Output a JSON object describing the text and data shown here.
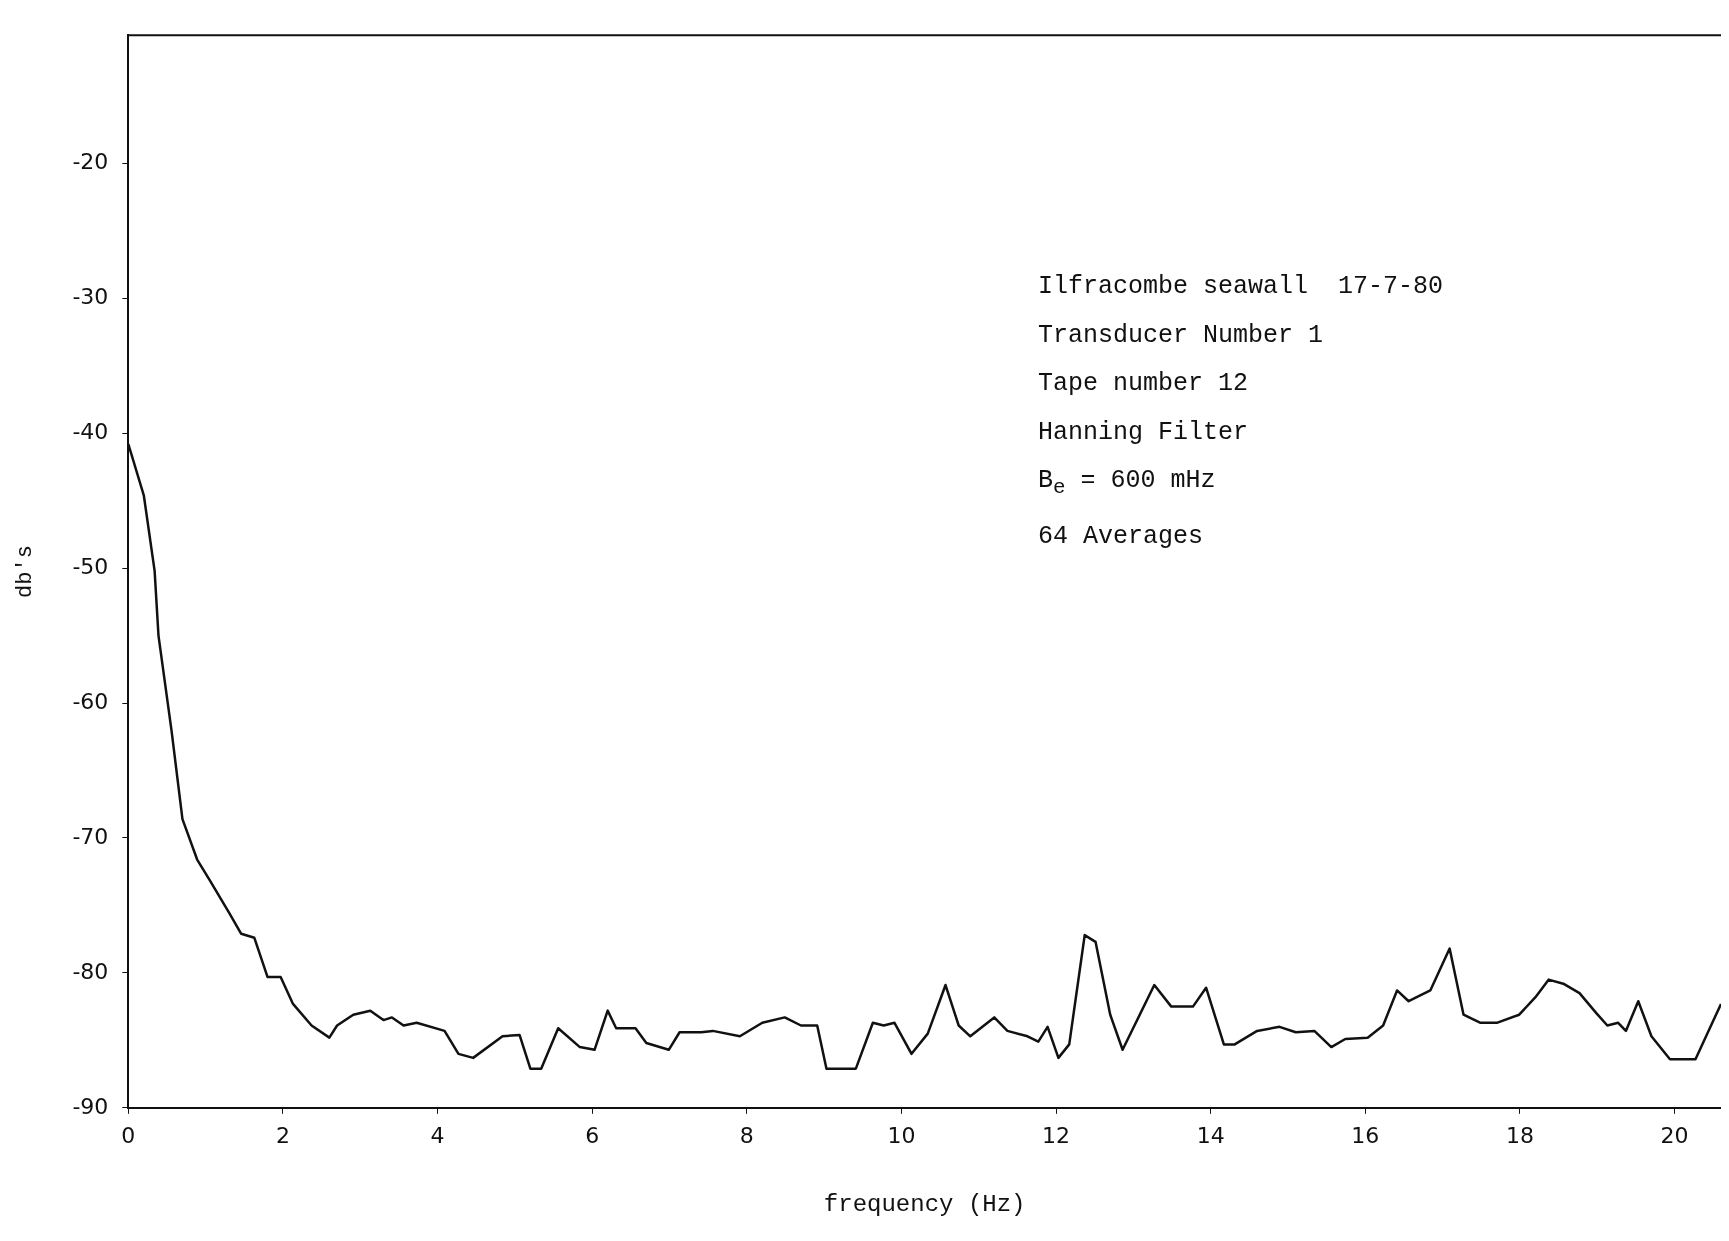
{
  "chart_data": {
    "type": "line",
    "xlabel": "frequency (Hz)",
    "ylabel": "db's",
    "annotations": [
      "Ilfracombe seawall  17-7-80",
      "Transducer Number 1",
      "Tape number 12",
      "Hanning Filter",
      "B$_{e}$ = 600 mHz",
      "64 Averages"
    ],
    "xlim": [
      0,
      20.6
    ],
    "xticks": [
      0,
      2,
      4,
      6,
      8,
      10,
      12,
      14,
      16,
      18,
      20
    ],
    "ylim": [
      -90,
      -10.5
    ],
    "yticks": [
      -90,
      -80,
      -70,
      -60,
      -50,
      -40,
      -30,
      -20
    ],
    "grid": false,
    "legend": false,
    "marker": "none",
    "line_style": "solid",
    "series": [
      {
        "color": "#111111",
        "x": [
          0,
          0.2,
          0.34,
          0.39,
          0.56,
          0.7,
          0.89,
          1.06,
          1.31,
          1.46,
          1.63,
          1.8,
          1.97,
          2.13,
          2.37,
          2.6,
          2.7,
          2.91,
          3.13,
          3.3,
          3.41,
          3.56,
          3.73,
          4.09,
          4.27,
          4.46,
          4.84,
          5.06,
          5.2,
          5.34,
          5.56,
          5.84,
          6.03,
          6.2,
          6.31,
          6.56,
          6.7,
          6.99,
          7.13,
          7.41,
          7.56,
          7.91,
          8.2,
          8.49,
          8.7,
          8.91,
          9.03,
          9.41,
          9.63,
          9.77,
          9.91,
          10.13,
          10.34,
          10.57,
          10.74,
          10.89,
          11.2,
          11.37,
          11.63,
          11.77,
          11.89,
          12.03,
          12.17,
          12.37,
          12.51,
          12.7,
          12.86,
          13.27,
          13.49,
          13.77,
          13.94,
          14.17,
          14.31,
          14.6,
          14.89,
          15.1,
          15.34,
          15.56,
          15.74,
          16.03,
          16.23,
          16.41,
          16.56,
          16.84,
          17.09,
          17.27,
          17.49,
          17.7,
          17.99,
          18.2,
          18.37,
          18.56,
          18.77,
          18.99,
          19.13,
          19.27,
          19.37,
          19.53,
          19.7,
          19.94,
          20.27,
          20.6
        ],
        "values": [
          -40.8,
          -44.6,
          -50.2,
          -55,
          -62.1,
          -68.6,
          -71.6,
          -73.2,
          -75.6,
          -77.1,
          -77.4,
          -80.3,
          -80.3,
          -82.3,
          -83.9,
          -84.8,
          -83.9,
          -83.1,
          -82.8,
          -83.5,
          -83.3,
          -83.9,
          -83.7,
          -84.3,
          -86,
          -86.3,
          -84.7,
          -84.6,
          -87.1,
          -87.1,
          -84.1,
          -85.5,
          -85.7,
          -82.8,
          -84.1,
          -84.1,
          -85.2,
          -85.7,
          -84.4,
          -84.4,
          -84.3,
          -84.7,
          -83.7,
          -83.3,
          -83.9,
          -83.9,
          -87.1,
          -87.1,
          -83.7,
          -83.9,
          -83.7,
          -86,
          -84.5,
          -80.9,
          -83.9,
          -84.7,
          -83.3,
          -84.3,
          -84.7,
          -85.1,
          -84,
          -86.3,
          -85.3,
          -77.2,
          -77.7,
          -83.1,
          -85.7,
          -80.9,
          -82.5,
          -82.5,
          -81.1,
          -85.3,
          -85.3,
          -84.3,
          -84,
          -84.4,
          -84.3,
          -85.5,
          -84.9,
          -84.8,
          -83.9,
          -81.3,
          -82.1,
          -81.3,
          -78.2,
          -83.1,
          -83.7,
          -83.7,
          -83.1,
          -81.8,
          -80.5,
          -80.8,
          -81.5,
          -83,
          -83.9,
          -83.7,
          -84.3,
          -82.1,
          -84.7,
          -86.4,
          -86.4,
          -82.3
        ]
      }
    ]
  }
}
